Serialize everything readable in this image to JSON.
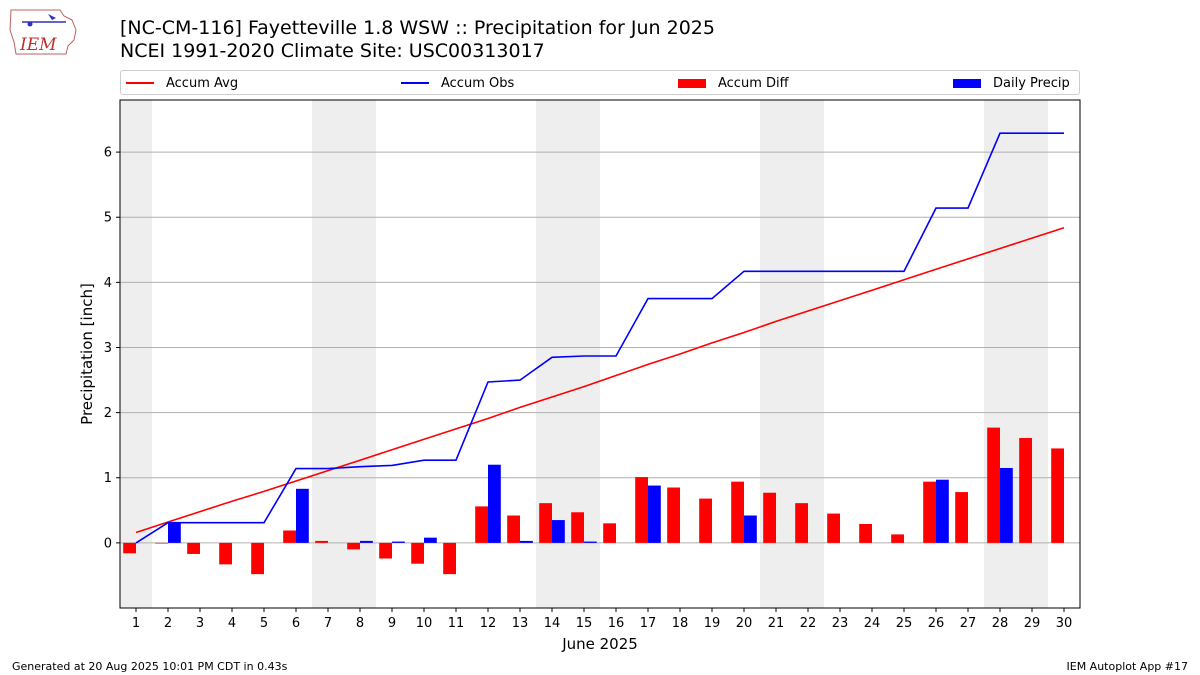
{
  "title": "[NC-CM-116] Fayetteville 1.8 WSW :: Precipitation for Jun 2025",
  "subtitle": "NCEI 1991-2020 Climate Site: USC00313017",
  "footer_left": "Generated at 20 Aug 2025 10:01 PM CDT in 0.43s",
  "footer_right": "IEM Autoplot App #17",
  "logo_text": "IEM",
  "colors": {
    "accum_avg": "#ff0000",
    "accum_obs": "#0000ff",
    "accum_diff": "#ff0000",
    "daily_precip": "#0000ff",
    "weekend_band": "#eeeeee",
    "grid": "#b0b0b0"
  },
  "legend": {
    "accum_avg": "Accum Avg",
    "accum_obs": "Accum Obs",
    "accum_diff": "Accum Diff",
    "daily_precip": "Daily Precip"
  },
  "chart_data": {
    "type": "bar",
    "xlabel": "June 2025",
    "ylabel": "Precipitation [inch]",
    "xlim": [
      0.5,
      30.5
    ],
    "ylim": [
      -1.0,
      6.8
    ],
    "yticks": [
      0,
      1,
      2,
      3,
      4,
      5,
      6
    ],
    "grid": true,
    "legend_position": "top",
    "x": [
      1,
      2,
      3,
      4,
      5,
      6,
      7,
      8,
      9,
      10,
      11,
      12,
      13,
      14,
      15,
      16,
      17,
      18,
      19,
      20,
      21,
      22,
      23,
      24,
      25,
      26,
      27,
      28,
      29,
      30
    ],
    "weekend_bands": [
      [
        0.5,
        1.5
      ],
      [
        6.5,
        8.5
      ],
      [
        13.5,
        15.5
      ],
      [
        20.5,
        22.5
      ],
      [
        27.5,
        29.5
      ]
    ],
    "series": [
      {
        "name": "Accum Avg",
        "kind": "line",
        "values": [
          0.16,
          0.32,
          0.48,
          0.64,
          0.79,
          0.95,
          1.11,
          1.27,
          1.43,
          1.59,
          1.75,
          1.91,
          2.08,
          2.24,
          2.4,
          2.57,
          2.74,
          2.9,
          3.07,
          3.23,
          3.4,
          3.56,
          3.72,
          3.88,
          4.04,
          4.2,
          4.36,
          4.52,
          4.68,
          4.84
        ]
      },
      {
        "name": "Accum Obs",
        "kind": "line",
        "values": [
          0.0,
          0.31,
          0.31,
          0.31,
          0.31,
          1.14,
          1.14,
          1.17,
          1.19,
          1.27,
          1.27,
          2.47,
          2.5,
          2.85,
          2.87,
          2.87,
          3.75,
          3.75,
          3.75,
          4.17,
          4.17,
          4.17,
          4.17,
          4.17,
          4.17,
          5.14,
          5.14,
          6.29,
          6.29,
          6.29
        ]
      },
      {
        "name": "Accum Diff",
        "kind": "bar",
        "values": [
          -0.16,
          -0.01,
          -0.17,
          -0.33,
          -0.48,
          0.19,
          0.03,
          -0.1,
          -0.24,
          -0.32,
          -0.48,
          0.56,
          0.42,
          0.61,
          0.47,
          0.3,
          1.01,
          0.85,
          0.68,
          0.94,
          0.77,
          0.61,
          0.45,
          0.29,
          0.13,
          0.94,
          0.78,
          1.77,
          1.61,
          1.45
        ]
      },
      {
        "name": "Daily Precip",
        "kind": "bar",
        "values": [
          0.0,
          0.31,
          0.0,
          0.0,
          0.0,
          0.83,
          0.0,
          0.03,
          0.02,
          0.08,
          0.0,
          1.2,
          0.03,
          0.35,
          0.02,
          0.0,
          0.88,
          0.0,
          0.0,
          0.42,
          0.0,
          0.0,
          0.0,
          0.0,
          0.0,
          0.97,
          0.0,
          1.15,
          0.0,
          0.0
        ]
      }
    ]
  }
}
